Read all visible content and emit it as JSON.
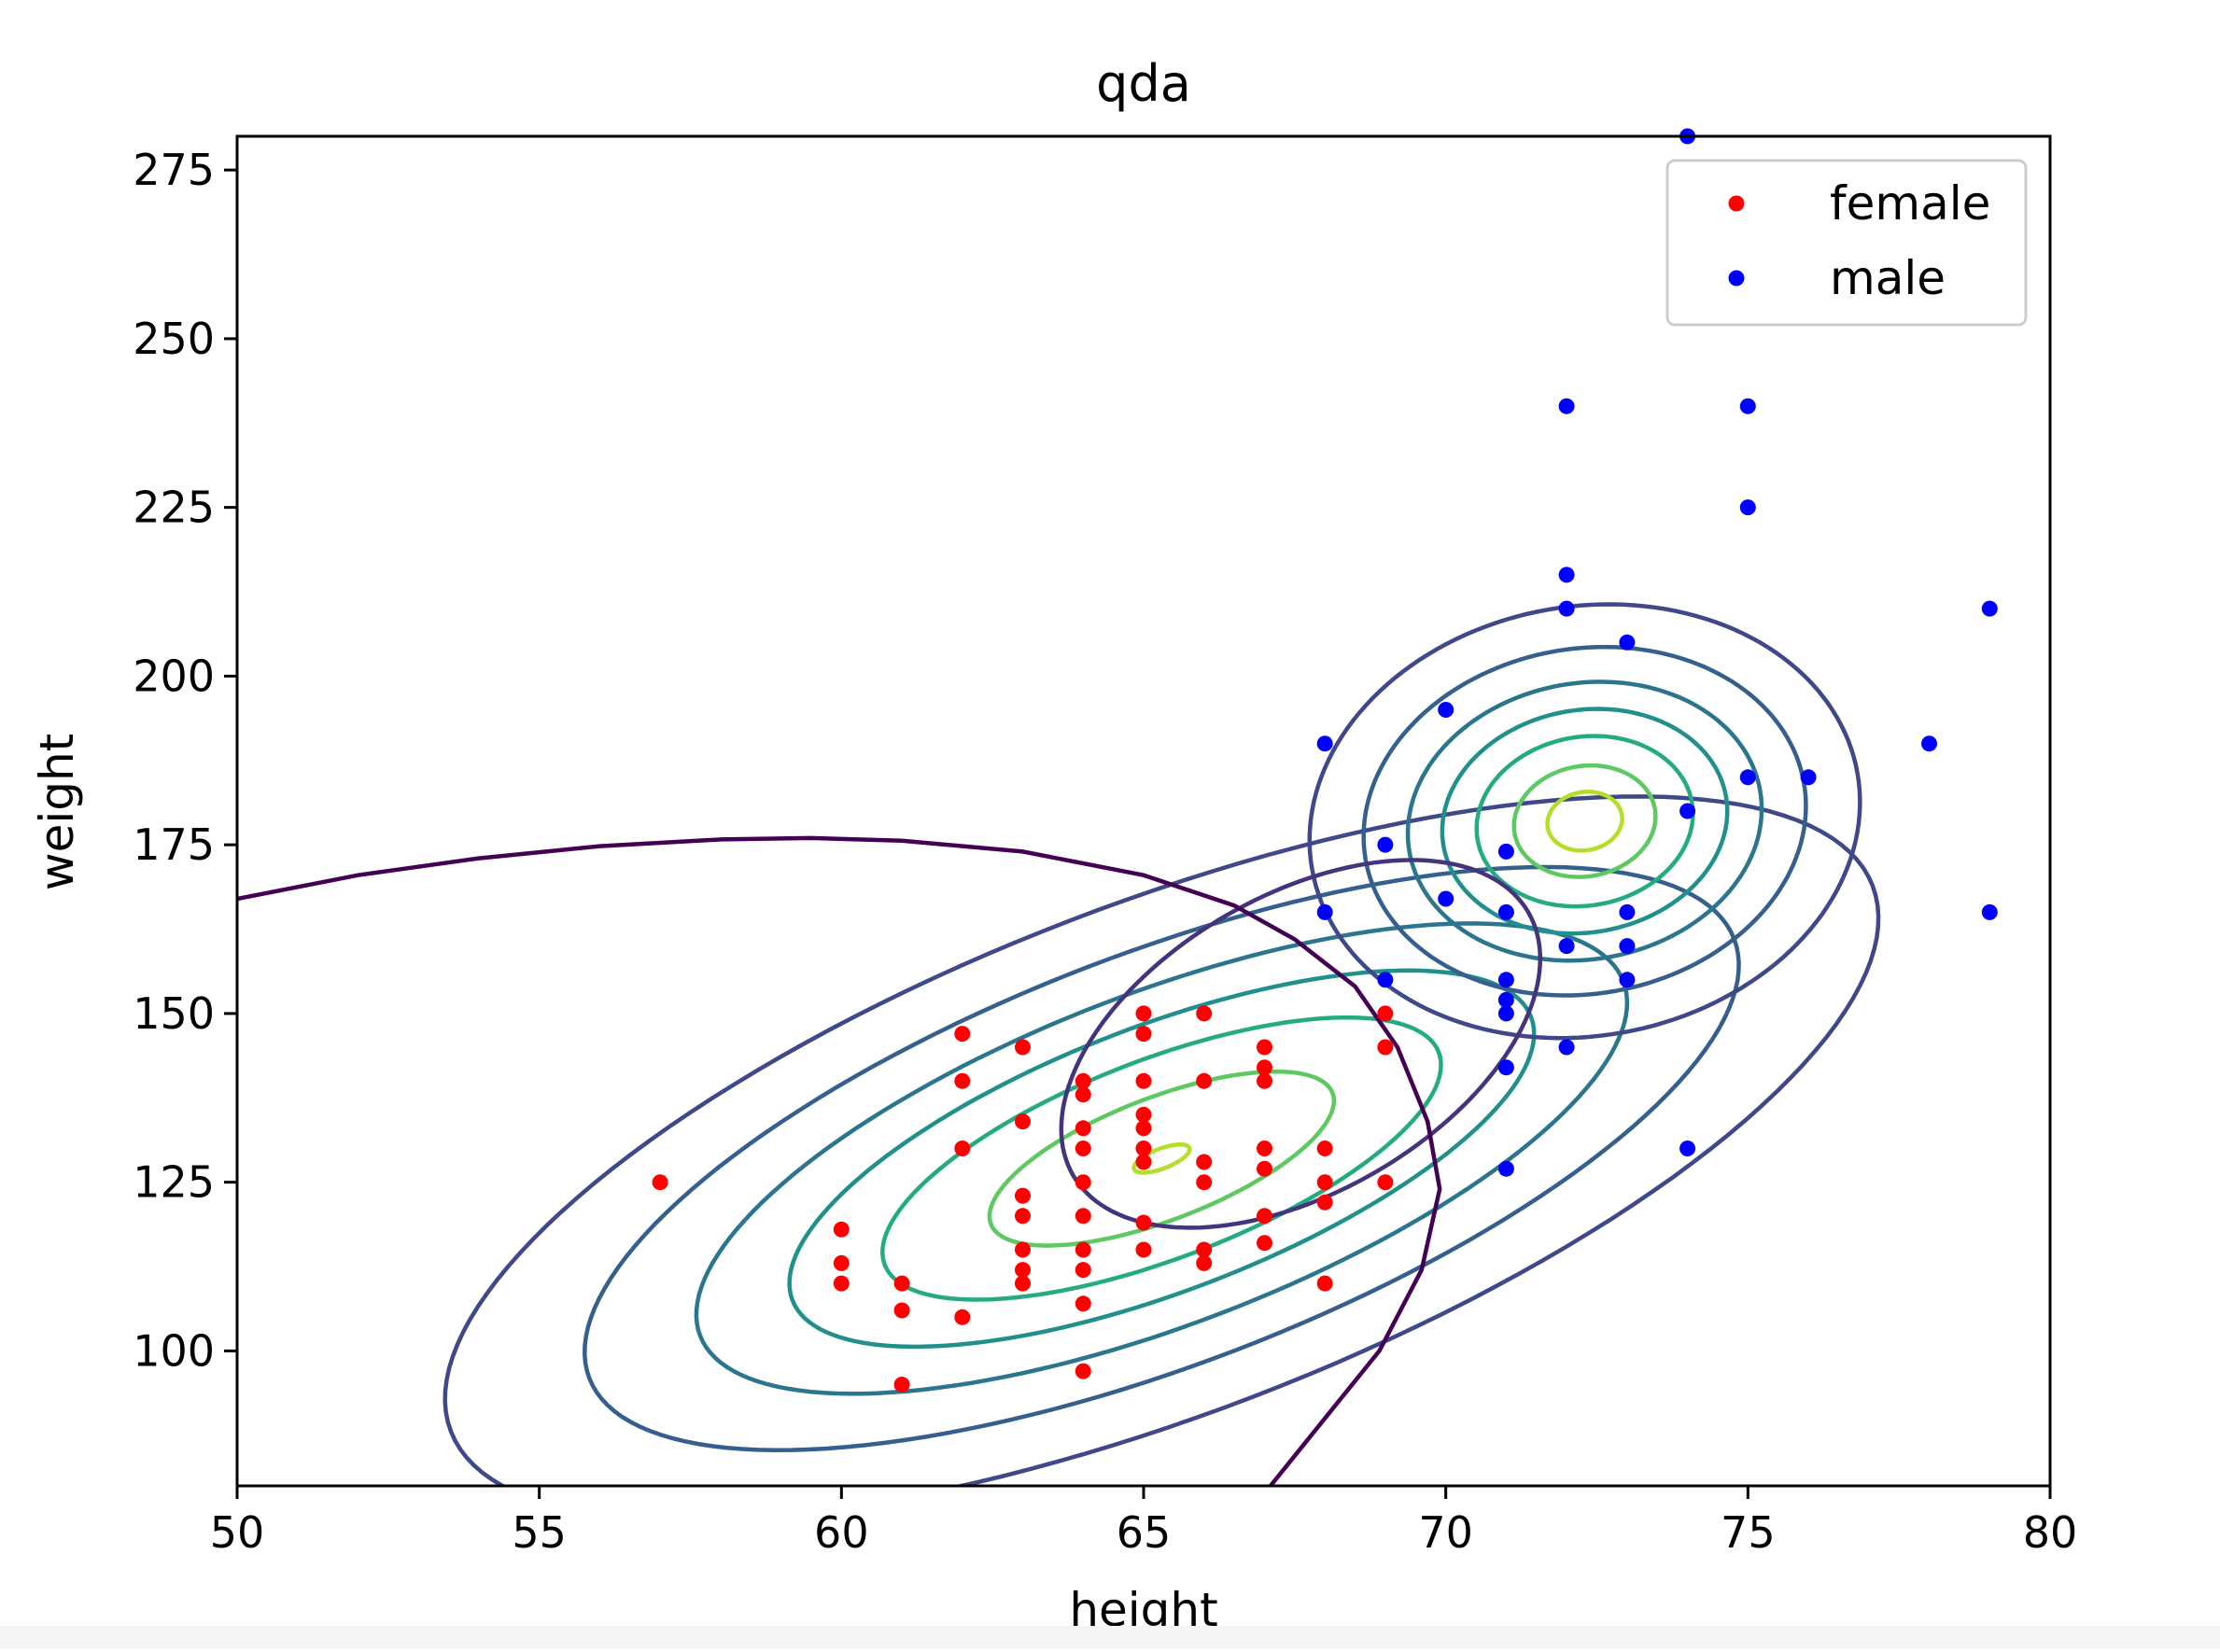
{
  "chart_data": {
    "type": "scatter",
    "title": "qda",
    "xlabel": "height",
    "ylabel": "weight",
    "xlim": [
      50,
      80
    ],
    "ylim": [
      80,
      280
    ],
    "xticks": [
      50,
      55,
      60,
      65,
      70,
      75,
      80
    ],
    "yticks": [
      100,
      125,
      150,
      175,
      200,
      225,
      250,
      275
    ],
    "legend_position": "upper right",
    "grid": false,
    "series": [
      {
        "name": "female",
        "color": "#ff0000",
        "points": [
          [
            57,
            125
          ],
          [
            60,
            118
          ],
          [
            60,
            113
          ],
          [
            60,
            110
          ],
          [
            61,
            110
          ],
          [
            61,
            106
          ],
          [
            61,
            95
          ],
          [
            62,
            147
          ],
          [
            62,
            140
          ],
          [
            62,
            130
          ],
          [
            62,
            105
          ],
          [
            63,
            145
          ],
          [
            63,
            134
          ],
          [
            63,
            123
          ],
          [
            63,
            120
          ],
          [
            63,
            115
          ],
          [
            63,
            112
          ],
          [
            63,
            110
          ],
          [
            64,
            140
          ],
          [
            64,
            138
          ],
          [
            64,
            133
          ],
          [
            64,
            130
          ],
          [
            64,
            125
          ],
          [
            64,
            120
          ],
          [
            64,
            115
          ],
          [
            64,
            112
          ],
          [
            64,
            107
          ],
          [
            64,
            97
          ],
          [
            65,
            150
          ],
          [
            65,
            147
          ],
          [
            65,
            140
          ],
          [
            65,
            135
          ],
          [
            65,
            133
          ],
          [
            65,
            130
          ],
          [
            65,
            128
          ],
          [
            65,
            119
          ],
          [
            65,
            115
          ],
          [
            66,
            150
          ],
          [
            66,
            140
          ],
          [
            66,
            128
          ],
          [
            66,
            125
          ],
          [
            66,
            115
          ],
          [
            66,
            113
          ],
          [
            67,
            145
          ],
          [
            67,
            142
          ],
          [
            67,
            140
          ],
          [
            67,
            130
          ],
          [
            67,
            127
          ],
          [
            67,
            120
          ],
          [
            67,
            116
          ],
          [
            68,
            130
          ],
          [
            68,
            125
          ],
          [
            68,
            122
          ],
          [
            68,
            110
          ],
          [
            69,
            150
          ],
          [
            69,
            145
          ],
          [
            69,
            125
          ]
        ]
      },
      {
        "name": "male",
        "color": "#0000ff",
        "points": [
          [
            68,
            190
          ],
          [
            68,
            165
          ],
          [
            69,
            175
          ],
          [
            69,
            155
          ],
          [
            70,
            195
          ],
          [
            70,
            167
          ],
          [
            71,
            174
          ],
          [
            71,
            165
          ],
          [
            71,
            155
          ],
          [
            71,
            152
          ],
          [
            71,
            150
          ],
          [
            71,
            142
          ],
          [
            71,
            127
          ],
          [
            72,
            240
          ],
          [
            72,
            215
          ],
          [
            72,
            210
          ],
          [
            72,
            160
          ],
          [
            72,
            145
          ],
          [
            73,
            205
          ],
          [
            73,
            165
          ],
          [
            73,
            160
          ],
          [
            73,
            155
          ],
          [
            74,
            280
          ],
          [
            74,
            180
          ],
          [
            74,
            130
          ],
          [
            75,
            240
          ],
          [
            75,
            225
          ],
          [
            75,
            185
          ],
          [
            76,
            185
          ],
          [
            78,
            190
          ],
          [
            79,
            210
          ],
          [
            79,
            165
          ]
        ]
      }
    ],
    "contours": [
      {
        "group": "female",
        "center": [
          65.3,
          128.5
        ],
        "levels": [
          {
            "color": "#3f4889",
            "rx": 3.6,
            "ry": 10.8,
            "angle": 21,
            "r": 7.7
          },
          {
            "color": "#355f8d",
            "rx": 3.6,
            "ry": 10.8,
            "angle": 21,
            "r": 6.2
          },
          {
            "color": "#2b758e",
            "rx": 3.6,
            "ry": 10.8,
            "angle": 21,
            "r": 5.0
          },
          {
            "color": "#21908d",
            "rx": 3.6,
            "ry": 10.8,
            "angle": 21,
            "r": 4.0
          },
          {
            "color": "#25ab82",
            "rx": 3.6,
            "ry": 10.8,
            "angle": 21,
            "r": 3.0
          },
          {
            "color": "#5ec962",
            "rx": 3.6,
            "ry": 10.8,
            "angle": 21,
            "r": 1.85
          },
          {
            "color": "#b5de2b",
            "rx": 3.6,
            "ry": 10.8,
            "angle": 21,
            "r": 0.3
          }
        ]
      },
      {
        "group": "male",
        "center": [
          72.3,
          178.5
        ],
        "levels": [
          {
            "color": "#3f4889",
            "rx": 3.6,
            "ry": 25,
            "angle": 10,
            "r": 2.8
          },
          {
            "color": "#355f8d",
            "rx": 3.6,
            "ry": 25,
            "angle": 10,
            "r": 2.25
          },
          {
            "color": "#2b758e",
            "rx": 3.6,
            "ry": 25,
            "angle": 10,
            "r": 1.8
          },
          {
            "color": "#21908d",
            "rx": 3.6,
            "ry": 25,
            "angle": 10,
            "r": 1.45
          },
          {
            "color": "#25ab82",
            "rx": 3.6,
            "ry": 25,
            "angle": 10,
            "r": 1.1
          },
          {
            "color": "#5ec962",
            "rx": 3.6,
            "ry": 25,
            "angle": 10,
            "r": 0.72
          },
          {
            "color": "#b5de2b",
            "rx": 3.6,
            "ry": 25,
            "angle": 10,
            "r": 0.38
          }
        ]
      }
    ],
    "mixed_contours": [
      {
        "color": "#46337e",
        "center": [
          67.6,
          145.5
        ],
        "rx": 4.35,
        "ry": 22,
        "angle": 30
      },
      {
        "color": "#440154",
        "points": [
          [
            50,
            167
          ],
          [
            52,
            170.5
          ],
          [
            54,
            173
          ],
          [
            56,
            174.8
          ],
          [
            58,
            175.8
          ],
          [
            59.5,
            176
          ],
          [
            61,
            175.6
          ],
          [
            63,
            174
          ],
          [
            65,
            170.5
          ],
          [
            66.5,
            166
          ],
          [
            67.5,
            161
          ],
          [
            68.5,
            154
          ],
          [
            69.2,
            145
          ],
          [
            69.7,
            134
          ],
          [
            69.9,
            124
          ],
          [
            69.6,
            112
          ],
          [
            68.9,
            100
          ],
          [
            68.0,
            90
          ],
          [
            67.1,
            80
          ]
        ]
      }
    ]
  }
}
